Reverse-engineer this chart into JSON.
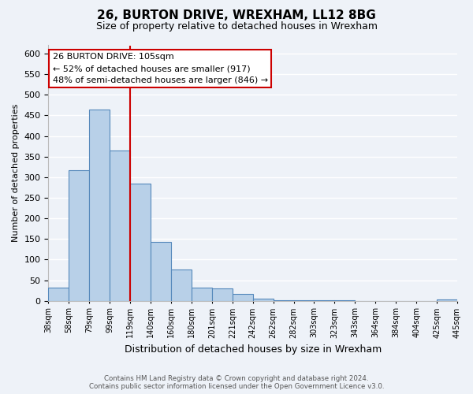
{
  "title": "26, BURTON DRIVE, WREXHAM, LL12 8BG",
  "subtitle": "Size of property relative to detached houses in Wrexham",
  "xlabel": "Distribution of detached houses by size in Wrexham",
  "ylabel": "Number of detached properties",
  "bar_values": [
    32,
    316,
    465,
    365,
    284,
    142,
    76,
    32,
    29,
    16,
    6,
    2,
    1,
    1,
    1,
    0,
    0,
    0,
    0,
    4
  ],
  "bar_labels": [
    "38sqm",
    "58sqm",
    "79sqm",
    "99sqm",
    "119sqm",
    "140sqm",
    "160sqm",
    "180sqm",
    "201sqm",
    "221sqm",
    "242sqm",
    "262sqm",
    "282sqm",
    "303sqm",
    "323sqm",
    "343sqm",
    "364sqm",
    "384sqm",
    "404sqm",
    "425sqm",
    "445sqm"
  ],
  "bar_color": "#b8d0e8",
  "bar_edge_color": "#5588bb",
  "vline_color": "#cc0000",
  "annotation_lines": [
    "26 BURTON DRIVE: 105sqm",
    "← 52% of detached houses are smaller (917)",
    "48% of semi-detached houses are larger (846) →"
  ],
  "ylim": [
    0,
    620
  ],
  "yticks": [
    0,
    50,
    100,
    150,
    200,
    250,
    300,
    350,
    400,
    450,
    500,
    550,
    600
  ],
  "footer_line1": "Contains HM Land Registry data © Crown copyright and database right 2024.",
  "footer_line2": "Contains public sector information licensed under the Open Government Licence v3.0.",
  "bg_color": "#eef2f8",
  "grid_color": "#ffffff"
}
